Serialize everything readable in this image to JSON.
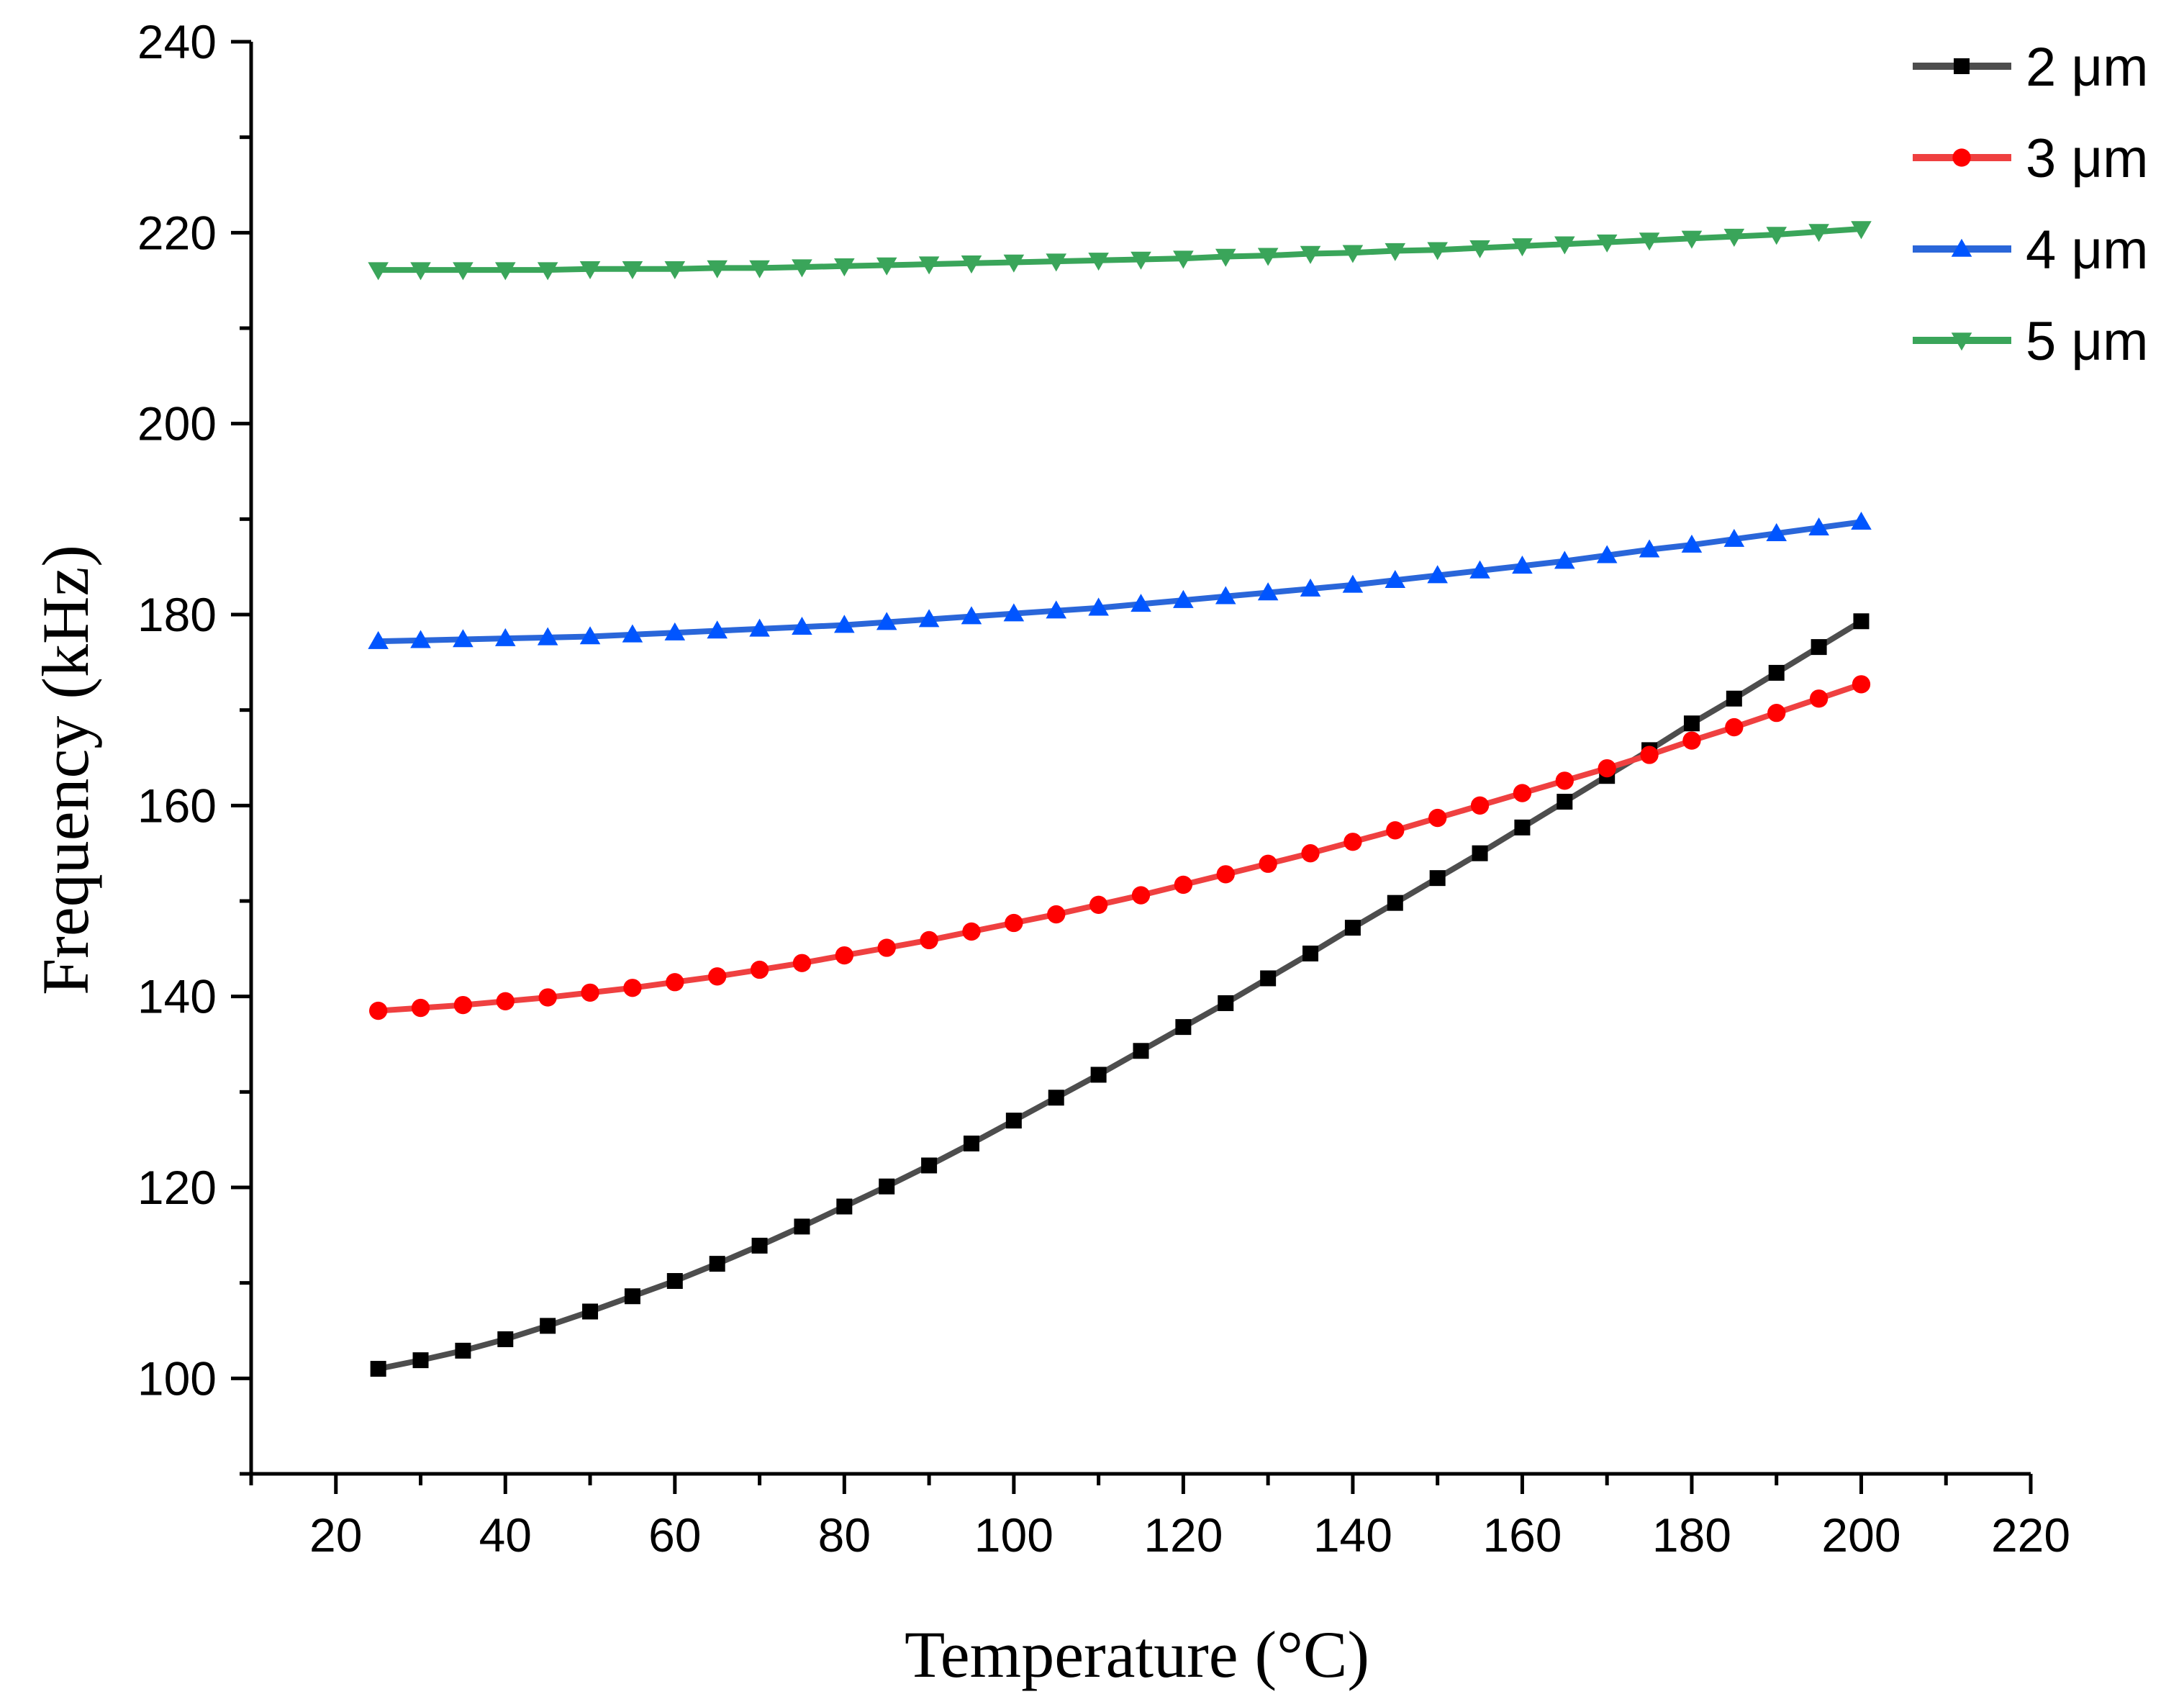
{
  "chart_data": {
    "type": "line",
    "title": "",
    "xlabel": "Temperature (°C)",
    "ylabel": "Frequency (kHz)",
    "xlim": [
      10,
      220
    ],
    "ylim": [
      90,
      240
    ],
    "xticks": [
      20,
      40,
      60,
      80,
      100,
      120,
      140,
      160,
      180,
      200,
      220
    ],
    "yticks": [
      100,
      120,
      140,
      160,
      180,
      200,
      220,
      240
    ],
    "x": [
      25,
      30,
      35,
      40,
      45,
      50,
      55,
      60,
      65,
      70,
      75,
      80,
      85,
      90,
      95,
      100,
      105,
      110,
      115,
      120,
      125,
      130,
      135,
      140,
      145,
      150,
      155,
      160,
      165,
      170,
      175,
      180,
      185,
      190,
      195,
      200
    ],
    "legend_position": "top-right",
    "grid": false,
    "series": [
      {
        "name": "2 μm",
        "color": "#000000",
        "line_color": "#4d4d4d",
        "marker": "square",
        "values": [
          101.0,
          101.9,
          102.9,
          104.1,
          105.5,
          107.0,
          108.6,
          110.2,
          112.0,
          113.9,
          115.9,
          118.0,
          120.1,
          122.3,
          124.6,
          127.0,
          129.4,
          131.8,
          134.3,
          136.8,
          139.3,
          141.9,
          144.5,
          147.2,
          149.8,
          152.4,
          155.0,
          157.7,
          160.4,
          163.1,
          165.8,
          168.6,
          171.2,
          173.9,
          176.6,
          179.3
        ]
      },
      {
        "name": "3 μm",
        "color": "#ff0000",
        "line_color": "#ef4040",
        "marker": "circle",
        "values": [
          138.5,
          138.8,
          139.1,
          139.5,
          139.9,
          140.4,
          140.9,
          141.5,
          142.1,
          142.8,
          143.5,
          144.3,
          145.1,
          145.9,
          146.8,
          147.7,
          148.6,
          149.6,
          150.6,
          151.7,
          152.8,
          153.9,
          155.0,
          156.2,
          157.4,
          158.7,
          160.0,
          161.3,
          162.6,
          163.9,
          165.3,
          166.8,
          168.2,
          169.7,
          171.2,
          172.7
        ]
      },
      {
        "name": "4 μm",
        "color": "#0055ff",
        "line_color": "#2a66d9",
        "marker": "triangle-up",
        "values": [
          177.2,
          177.3,
          177.4,
          177.5,
          177.6,
          177.7,
          177.9,
          178.1,
          178.3,
          178.5,
          178.7,
          178.9,
          179.2,
          179.5,
          179.8,
          180.1,
          180.4,
          180.7,
          181.1,
          181.5,
          181.9,
          182.3,
          182.7,
          183.1,
          183.6,
          184.1,
          184.6,
          185.1,
          185.6,
          186.2,
          186.8,
          187.3,
          187.9,
          188.5,
          189.1,
          189.7
        ]
      },
      {
        "name": "5 μm",
        "color": "#3aa55a",
        "line_color": "#3aa55a",
        "marker": "triangle-down",
        "values": [
          216.1,
          216.1,
          216.1,
          216.1,
          216.1,
          216.2,
          216.2,
          216.2,
          216.3,
          216.3,
          216.4,
          216.5,
          216.6,
          216.7,
          216.8,
          216.9,
          217.0,
          217.1,
          217.2,
          217.3,
          217.5,
          217.6,
          217.8,
          217.9,
          218.1,
          218.2,
          218.4,
          218.6,
          218.8,
          219.0,
          219.2,
          219.4,
          219.6,
          219.8,
          220.1,
          220.4
        ]
      }
    ]
  }
}
